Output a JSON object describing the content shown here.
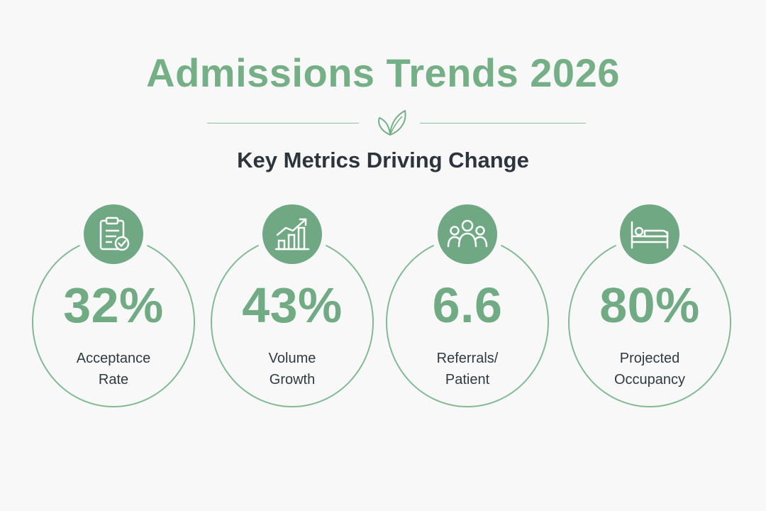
{
  "header": {
    "title": "Admissions Trends 2026",
    "subtitle": "Key Metrics Driving Change"
  },
  "colors": {
    "accent": "#74af86",
    "badge": "#6fa882",
    "text_dark": "#2c343d",
    "background": "#f8f8f8"
  },
  "metrics": [
    {
      "icon": "clipboard-check-icon",
      "value": "32%",
      "label_line1": "Acceptance",
      "label_line2": "Rate"
    },
    {
      "icon": "bar-chart-growth-icon",
      "value": "43%",
      "label_line1": "Volume",
      "label_line2": "Growth"
    },
    {
      "icon": "group-people-icon",
      "value": "6.6",
      "label_line1": "Referrals/",
      "label_line2": "Patient"
    },
    {
      "icon": "bed-patient-icon",
      "value": "80%",
      "label_line1": "Projected",
      "label_line2": "Occupancy"
    }
  ]
}
